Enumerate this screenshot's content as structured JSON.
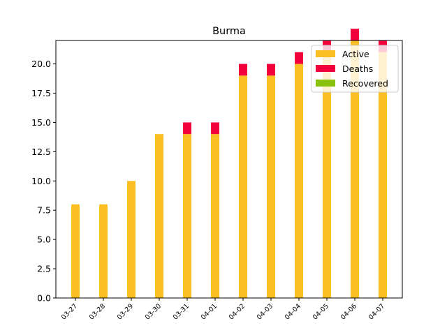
{
  "chart_data": {
    "type": "bar",
    "stacked": true,
    "title": "Burma",
    "xlabel": "",
    "ylabel": "",
    "categories": [
      "03-27",
      "03-28",
      "03-29",
      "03-30",
      "03-31",
      "04-01",
      "04-02",
      "04-03",
      "04-04",
      "04-05",
      "04-06",
      "04-07"
    ],
    "series": [
      {
        "name": "Active",
        "color": "#fbbf24",
        "values": [
          8,
          8,
          10,
          14,
          14,
          14,
          19,
          19,
          20,
          21,
          22,
          21
        ]
      },
      {
        "name": "Deaths",
        "color": "#f2003c",
        "values": [
          0,
          0,
          0,
          0,
          1,
          1,
          1,
          1,
          1,
          1,
          1,
          1
        ]
      },
      {
        "name": "Recovered",
        "color": "#8ac10b",
        "values": [
          0,
          0,
          0,
          0,
          0,
          0,
          0,
          0,
          0,
          0,
          0,
          0
        ]
      }
    ],
    "ylim": [
      0,
      22
    ],
    "yticks": [
      "0.0",
      "2.5",
      "5.0",
      "7.5",
      "10.0",
      "12.5",
      "15.0",
      "17.5",
      "20.0"
    ],
    "grid": false,
    "legend_position": "top-right"
  }
}
